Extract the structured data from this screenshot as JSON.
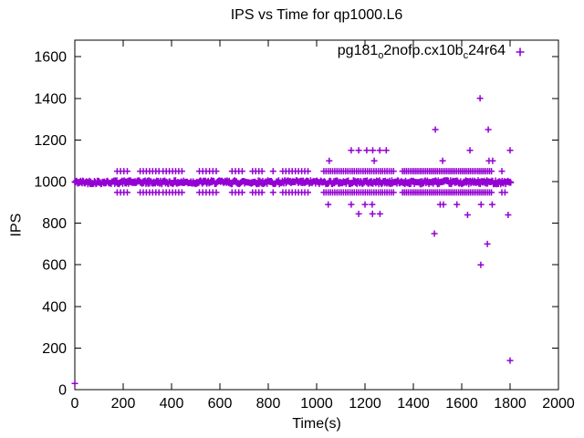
{
  "chart_data": {
    "type": "scatter",
    "title": "IPS vs Time for qp1000.L6",
    "xlabel": "Time(s)",
    "ylabel": "IPS",
    "xlim": [
      0,
      2000
    ],
    "ylim": [
      0,
      1680
    ],
    "xticks": [
      0,
      200,
      400,
      600,
      800,
      1000,
      1200,
      1400,
      1600,
      1800,
      2000
    ],
    "yticks": [
      0,
      200,
      400,
      600,
      800,
      1000,
      1200,
      1400,
      1600
    ],
    "grid": false,
    "marker": "plus",
    "marker_color": "#9400d3",
    "axis_color": "#000000",
    "legend": {
      "position": "top-right-inside",
      "label_plain": "pg181_o2nofp.cx10b_c24r64",
      "parts": [
        {
          "t": "pg181",
          "sub": false
        },
        {
          "t": "o",
          "sub": true
        },
        {
          "t": "2nofp.cx10b",
          "sub": false
        },
        {
          "t": "c",
          "sub": true
        },
        {
          "t": "24r64",
          "sub": false
        }
      ]
    },
    "series": [
      {
        "name": "pg181_o2nofp.cx10b_c24r64",
        "band": {
          "t_from": 0,
          "t_to": 1805,
          "t_step": 3,
          "ips": 997,
          "ips_jitter": 9
        },
        "paired_rows": {
          "upper_ips": 1050,
          "lower_ips": 948,
          "ranges": [
            [
              175,
              230,
              14
            ],
            [
              270,
              350,
              13
            ],
            [
              365,
              455,
              13
            ],
            [
              515,
              590,
              14
            ],
            [
              650,
              705,
              14
            ],
            [
              735,
              775,
              13
            ],
            [
              860,
              965,
              13
            ],
            [
              1030,
              1325,
              9
            ],
            [
              1355,
              1725,
              8
            ]
          ],
          "singles": [
            820,
            1766
          ]
        },
        "outliers": [
          [
            0,
            30
          ],
          [
            1052,
            1100
          ],
          [
            1238,
            1100
          ],
          [
            1521,
            1100
          ],
          [
            1713,
            1100
          ],
          [
            1728,
            1100
          ],
          [
            1143,
            1150
          ],
          [
            1174,
            1150
          ],
          [
            1207,
            1150
          ],
          [
            1232,
            1150
          ],
          [
            1261,
            1150
          ],
          [
            1288,
            1150
          ],
          [
            1634,
            1150
          ],
          [
            1800,
            1150
          ],
          [
            1491,
            1250
          ],
          [
            1710,
            1250
          ],
          [
            1676,
            1400
          ],
          [
            1048,
            890
          ],
          [
            1143,
            890
          ],
          [
            1200,
            890
          ],
          [
            1230,
            890
          ],
          [
            1511,
            890
          ],
          [
            1524,
            890
          ],
          [
            1580,
            890
          ],
          [
            1680,
            890
          ],
          [
            1726,
            890
          ],
          [
            1174,
            845
          ],
          [
            1231,
            845
          ],
          [
            1262,
            845
          ],
          [
            1624,
            840
          ],
          [
            1792,
            840
          ],
          [
            1779,
            948
          ],
          [
            1487,
            750
          ],
          [
            1706,
            700
          ],
          [
            1679,
            600
          ],
          [
            1800,
            140
          ]
        ]
      }
    ]
  }
}
